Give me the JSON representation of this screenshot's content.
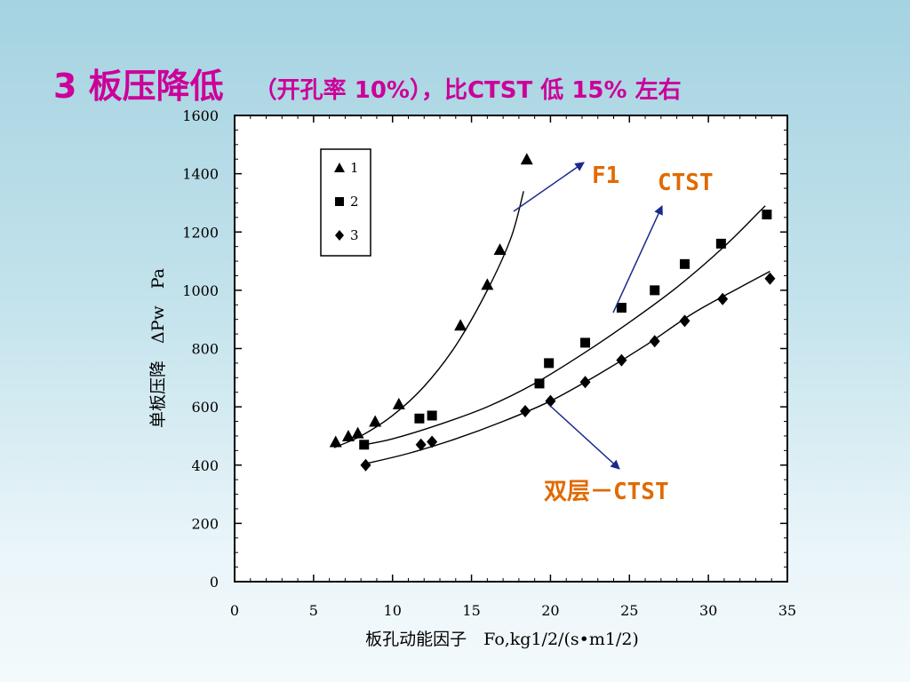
{
  "slide": {
    "title_main": "3 板压降低",
    "title_sub": "（开孔率 10%），比CTST 低 15% 左右"
  },
  "chart_data": {
    "type": "scatter",
    "title": "",
    "xlabel": "板孔动能因子　Fo,kg1/2/(s•m1/2)",
    "ylabel": "单板压降　ΔPw　Pa",
    "xlim": [
      0,
      35
    ],
    "ylim": [
      0,
      1600
    ],
    "x_ticks": [
      "0",
      "5",
      "10",
      "15",
      "20",
      "25",
      "30",
      "35"
    ],
    "y_ticks": [
      "0",
      "200",
      "400",
      "600",
      "800",
      "1000",
      "1200",
      "1400",
      "1600"
    ],
    "legend": {
      "position": "top-left",
      "entries": [
        "1",
        "2",
        "3"
      ]
    },
    "series": [
      {
        "name": "1",
        "marker": "triangle",
        "points": [
          [
            6.4,
            480
          ],
          [
            7.2,
            500
          ],
          [
            7.8,
            510
          ],
          [
            8.9,
            550
          ],
          [
            10.4,
            610
          ],
          [
            14.3,
            880
          ],
          [
            16.0,
            1020
          ],
          [
            16.8,
            1140
          ],
          [
            18.5,
            1450
          ]
        ],
        "fit": [
          [
            6.3,
            460
          ],
          [
            8,
            500
          ],
          [
            10,
            570
          ],
          [
            12,
            670
          ],
          [
            14,
            810
          ],
          [
            16,
            1000
          ],
          [
            17.5,
            1180
          ],
          [
            18.3,
            1340
          ]
        ]
      },
      {
        "name": "2",
        "marker": "square",
        "points": [
          [
            8.2,
            470
          ],
          [
            11.7,
            560
          ],
          [
            12.5,
            570
          ],
          [
            19.3,
            680
          ],
          [
            19.9,
            750
          ],
          [
            22.2,
            820
          ],
          [
            24.5,
            940
          ],
          [
            26.6,
            1000
          ],
          [
            28.5,
            1090
          ],
          [
            30.8,
            1160
          ],
          [
            33.7,
            1260
          ]
        ],
        "fit": [
          [
            8.2,
            470
          ],
          [
            10,
            490
          ],
          [
            13,
            540
          ],
          [
            16,
            600
          ],
          [
            19,
            680
          ],
          [
            22,
            780
          ],
          [
            25,
            890
          ],
          [
            28,
            1010
          ],
          [
            31,
            1150
          ],
          [
            33.6,
            1290
          ]
        ]
      },
      {
        "name": "3",
        "marker": "diamond",
        "points": [
          [
            8.3,
            400
          ],
          [
            11.8,
            470
          ],
          [
            12.5,
            480
          ],
          [
            18.4,
            585
          ],
          [
            20.0,
            620
          ],
          [
            22.2,
            685
          ],
          [
            24.5,
            760
          ],
          [
            26.6,
            825
          ],
          [
            28.5,
            895
          ],
          [
            30.9,
            970
          ],
          [
            33.9,
            1040
          ]
        ],
        "fit": [
          [
            8.3,
            405
          ],
          [
            11,
            440
          ],
          [
            14,
            490
          ],
          [
            17,
            550
          ],
          [
            20,
            620
          ],
          [
            23,
            710
          ],
          [
            26,
            810
          ],
          [
            29,
            920
          ],
          [
            32,
            1010
          ],
          [
            33.9,
            1065
          ]
        ]
      }
    ],
    "annotations": [
      {
        "text": "F1",
        "color": "#e06a00",
        "target_series": "1"
      },
      {
        "text": "CTST",
        "color": "#e06a00",
        "target_series": "2"
      },
      {
        "text": "双层－CTST",
        "color": "#e06a00",
        "target_series": "3"
      }
    ],
    "arrow_color": "#1a2a8a"
  }
}
